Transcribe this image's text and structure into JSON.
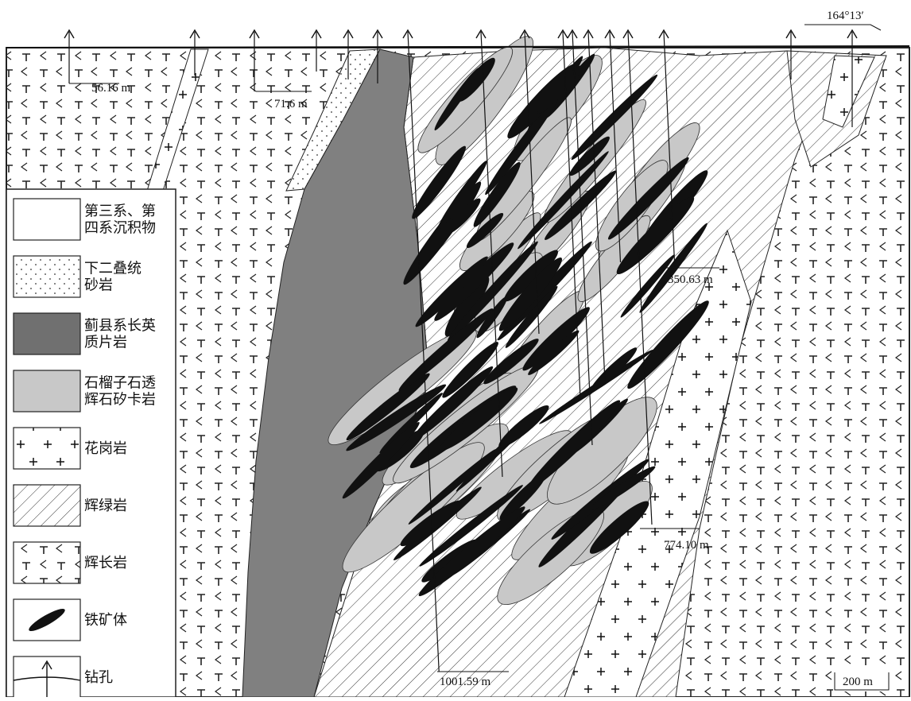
{
  "header": {
    "azimuth": "164°13′"
  },
  "depth_labels": [
    "56.16 m",
    "71.6 m",
    "350.63 m",
    "774.10 m",
    "1001.59 m"
  ],
  "scale_bar": "200 m",
  "legend": [
    {
      "lines": [
        "第三系、第",
        "四系沉积物"
      ]
    },
    {
      "lines": [
        "下二叠统",
        "砂岩"
      ]
    },
    {
      "lines": [
        "蓟县系长英",
        "质片岩"
      ]
    },
    {
      "lines": [
        "石榴子石透",
        "辉石矽卡岩"
      ]
    },
    {
      "lines": [
        "花岗岩"
      ]
    },
    {
      "lines": [
        "辉绿岩"
      ]
    },
    {
      "lines": [
        "辉长岩"
      ]
    },
    {
      "lines": [
        "铁矿体"
      ]
    },
    {
      "lines": [
        "钻孔"
      ]
    }
  ]
}
